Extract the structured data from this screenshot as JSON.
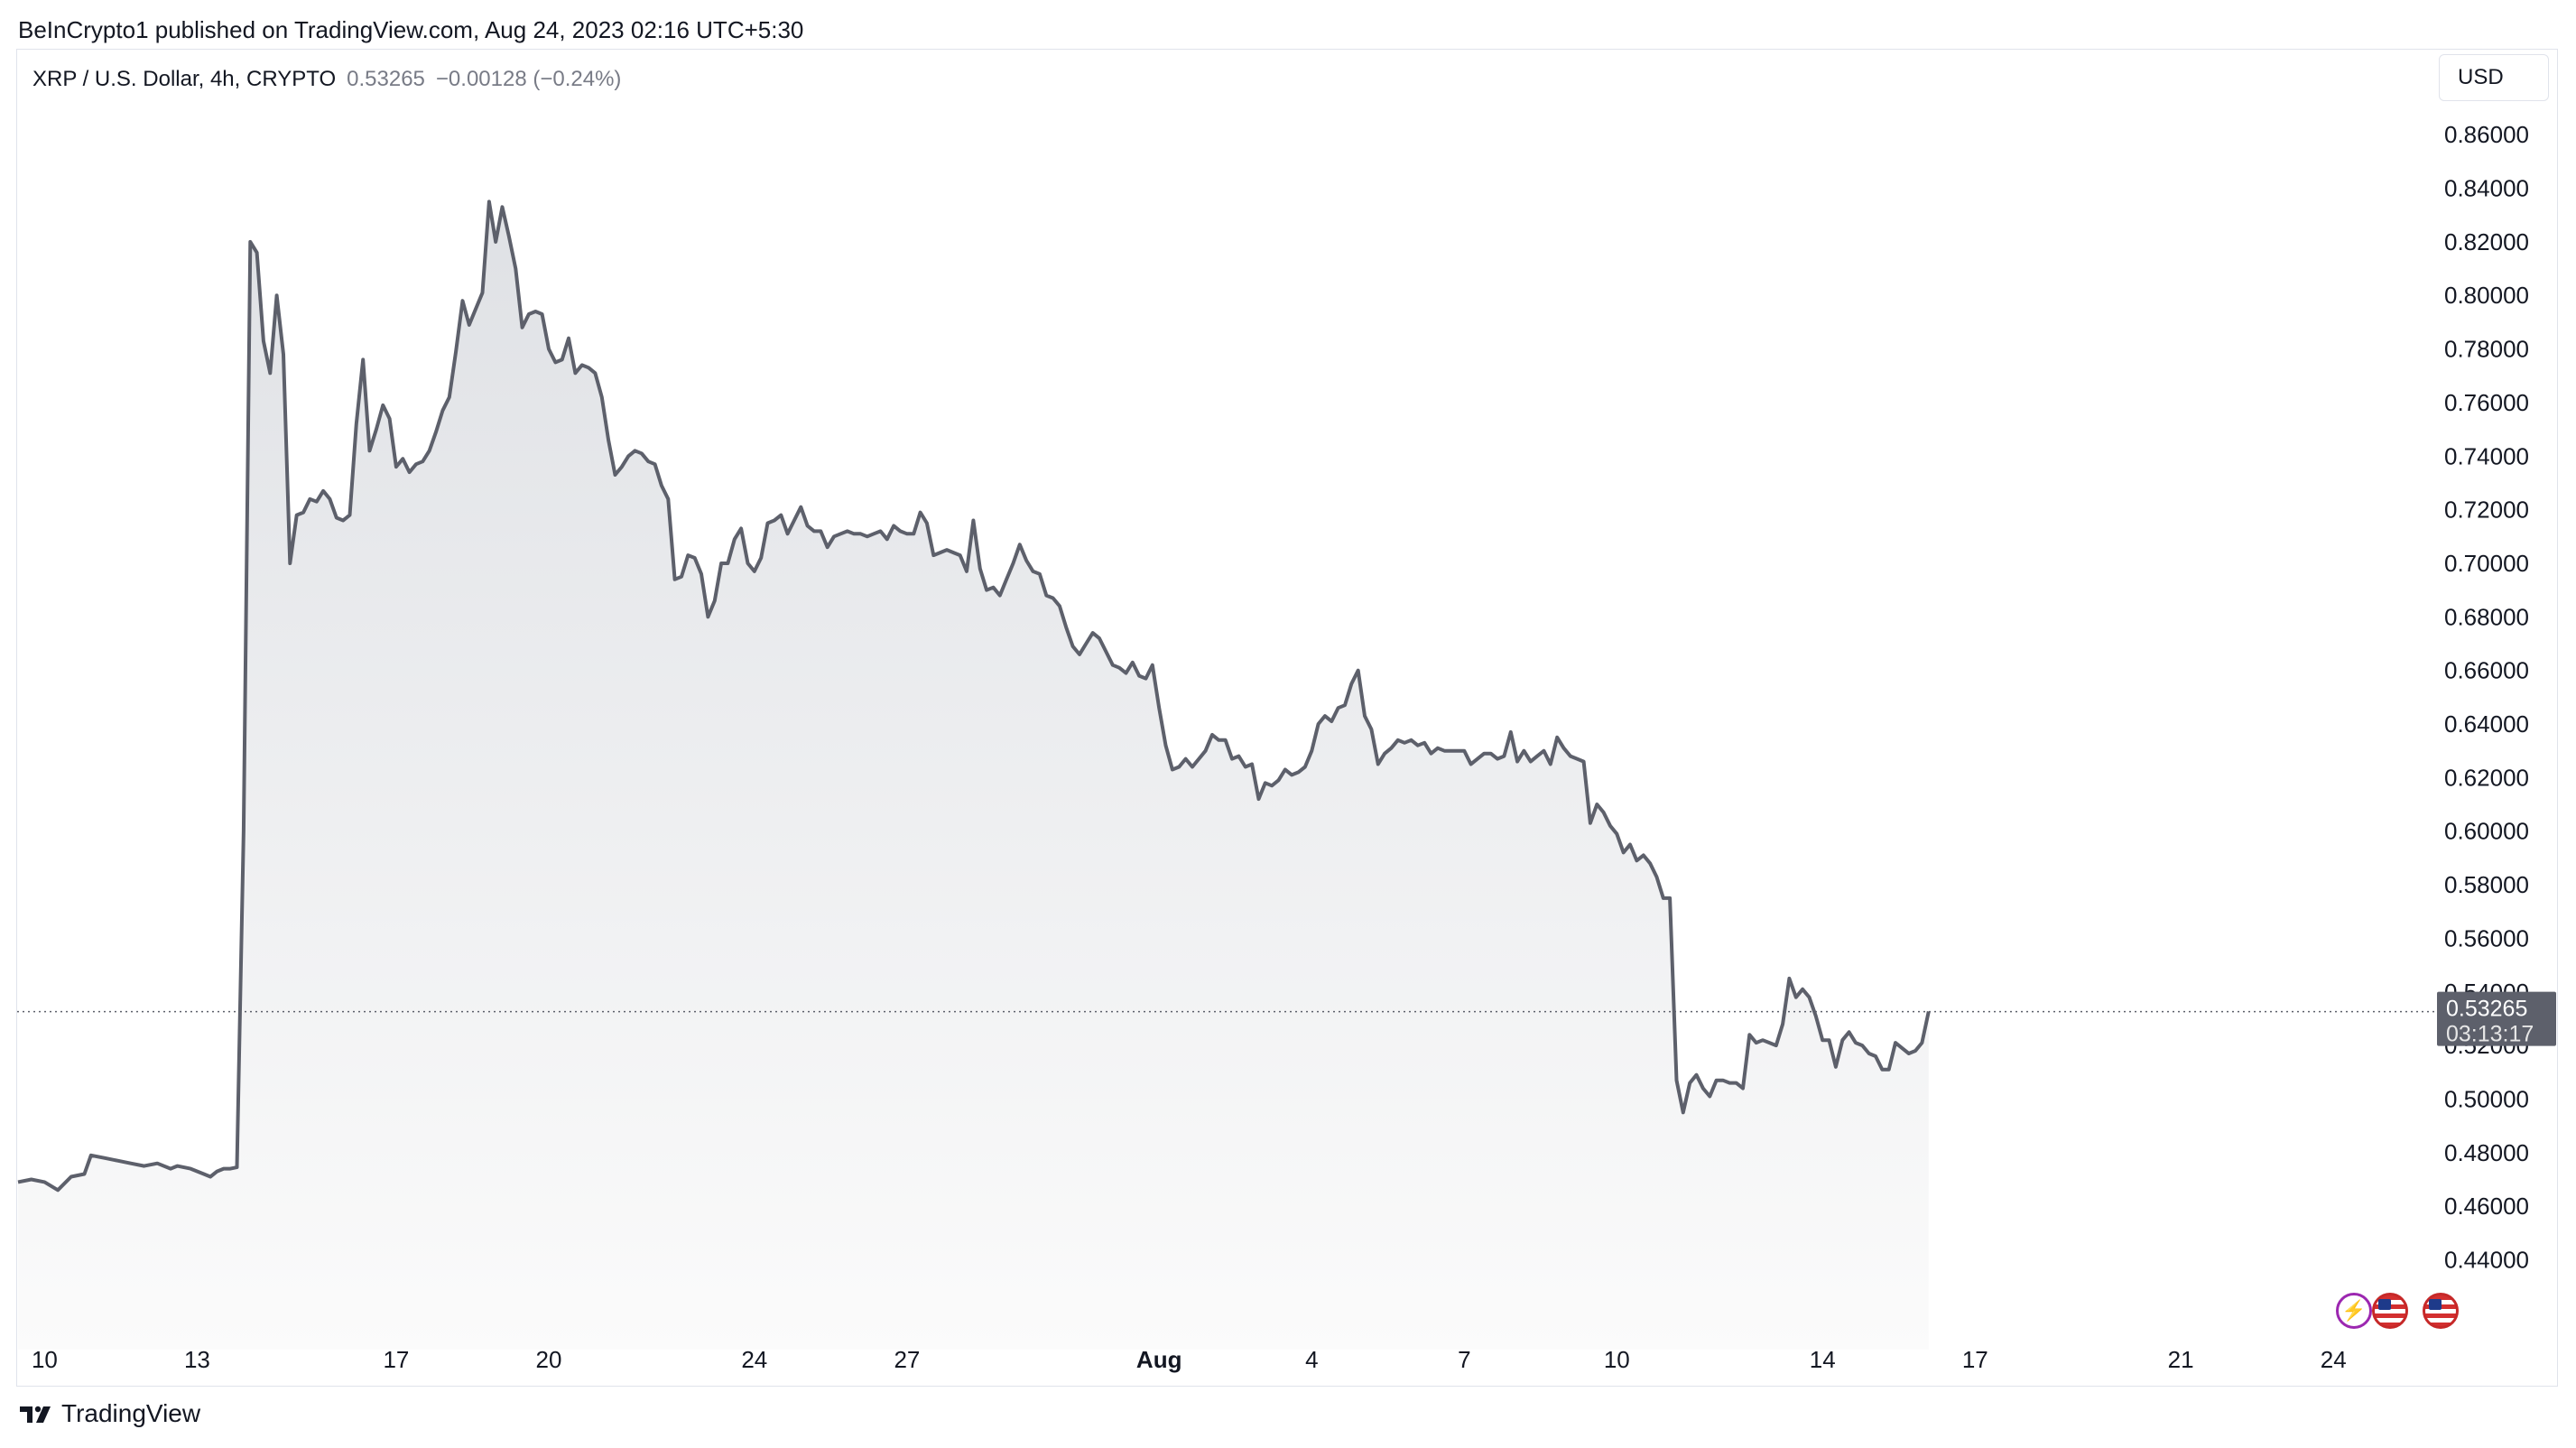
{
  "header": {
    "publish_text": "BeInCrypto1 published on TradingView.com, Aug 24, 2023 02:16 UTC+5:30"
  },
  "legend": {
    "symbol": "XRP / U.S. Dollar, 4h, CRYPTO",
    "last": "0.53265",
    "change": "−0.00128 (−0.24%)"
  },
  "currency_button": "USD",
  "price_label": {
    "price": "0.53265",
    "countdown": "03:13:17"
  },
  "badges": {
    "events_icon": "lightning-icon",
    "flag_icon": "us-flag-icon"
  },
  "footer": {
    "brand": "TradingView"
  },
  "colors": {
    "line": "#5d606b",
    "fill_top": "#dfe1e5",
    "fill_bottom": "#fbfbfb",
    "axis_text": "#131722",
    "price_label_bg": "#5d606b",
    "grid_border": "#e0e3eb"
  },
  "chart_data": {
    "type": "area",
    "title": "XRP / U.S. Dollar, 4h, CRYPTO",
    "xlabel": "",
    "ylabel": "",
    "legend": "none",
    "grid": false,
    "ylim": [
      0.425,
      0.885
    ],
    "xlim": [
      0,
      346
    ],
    "y_ticks": [
      "0.86000",
      "0.84000",
      "0.82000",
      "0.80000",
      "0.78000",
      "0.76000",
      "0.74000",
      "0.72000",
      "0.70000",
      "0.68000",
      "0.66000",
      "0.64000",
      "0.62000",
      "0.60000",
      "0.58000",
      "0.56000",
      "0.54000",
      "0.52000",
      "0.50000",
      "0.48000",
      "0.46000",
      "0.44000"
    ],
    "y_tick_values": [
      0.86,
      0.84,
      0.82,
      0.8,
      0.78,
      0.76,
      0.74,
      0.72,
      0.7,
      0.68,
      0.66,
      0.64,
      0.62,
      0.6,
      0.58,
      0.56,
      0.54,
      0.52,
      0.5,
      0.48,
      0.46,
      0.44
    ],
    "x_ticks": [
      {
        "label": "10",
        "x": 4
      },
      {
        "label": "13",
        "x": 27
      },
      {
        "label": "17",
        "x": 57
      },
      {
        "label": "20",
        "x": 80
      },
      {
        "label": "24",
        "x": 111
      },
      {
        "label": "27",
        "x": 134
      },
      {
        "label": "Aug",
        "x": 172,
        "bold": true
      },
      {
        "label": "4",
        "x": 195
      },
      {
        "label": "7",
        "x": 218
      },
      {
        "label": "10",
        "x": 241
      },
      {
        "label": "14",
        "x": 272
      },
      {
        "label": "17",
        "x": 295
      },
      {
        "label": "21",
        "x": 326
      },
      {
        "label": "24",
        "x": 349
      }
    ],
    "last_price": 0.53265,
    "series": [
      {
        "points": [
          [
            0,
            0.469
          ],
          [
            2,
            0.47
          ],
          [
            4,
            0.469
          ],
          [
            6,
            0.466
          ],
          [
            8,
            0.471
          ],
          [
            10,
            0.472
          ],
          [
            11,
            0.479
          ],
          [
            13,
            0.478
          ],
          [
            15,
            0.477
          ],
          [
            17,
            0.476
          ],
          [
            19,
            0.475
          ],
          [
            21,
            0.476
          ],
          [
            23,
            0.474
          ],
          [
            24,
            0.475
          ],
          [
            26,
            0.474
          ],
          [
            28,
            0.472
          ],
          [
            29,
            0.471
          ],
          [
            30,
            0.473
          ],
          [
            31,
            0.474
          ],
          [
            32,
            0.474
          ],
          [
            33,
            0.4745
          ],
          [
            34,
            0.6
          ],
          [
            35,
            0.82
          ],
          [
            36,
            0.816
          ],
          [
            37,
            0.783
          ],
          [
            38,
            0.771
          ],
          [
            39,
            0.8
          ],
          [
            40,
            0.778
          ],
          [
            41,
            0.7
          ],
          [
            42,
            0.718
          ],
          [
            43,
            0.719
          ],
          [
            44,
            0.724
          ],
          [
            45,
            0.723
          ],
          [
            46,
            0.727
          ],
          [
            47,
            0.724
          ],
          [
            48,
            0.717
          ],
          [
            49,
            0.716
          ],
          [
            50,
            0.718
          ],
          [
            51,
            0.752
          ],
          [
            52,
            0.776
          ],
          [
            53,
            0.742
          ],
          [
            54,
            0.75
          ],
          [
            55,
            0.759
          ],
          [
            56,
            0.754
          ],
          [
            57,
            0.736
          ],
          [
            58,
            0.739
          ],
          [
            59,
            0.734
          ],
          [
            60,
            0.737
          ],
          [
            61,
            0.738
          ],
          [
            62,
            0.742
          ],
          [
            63,
            0.749
          ],
          [
            64,
            0.757
          ],
          [
            65,
            0.762
          ],
          [
            66,
            0.779
          ],
          [
            67,
            0.798
          ],
          [
            68,
            0.789
          ],
          [
            69,
            0.795
          ],
          [
            70,
            0.801
          ],
          [
            71,
            0.835
          ],
          [
            72,
            0.82
          ],
          [
            73,
            0.833
          ],
          [
            74,
            0.822
          ],
          [
            75,
            0.81
          ],
          [
            76,
            0.788
          ],
          [
            77,
            0.793
          ],
          [
            78,
            0.794
          ],
          [
            79,
            0.793
          ],
          [
            80,
            0.78
          ],
          [
            81,
            0.775
          ],
          [
            82,
            0.776
          ],
          [
            83,
            0.784
          ],
          [
            84,
            0.771
          ],
          [
            85,
            0.774
          ],
          [
            86,
            0.773
          ],
          [
            87,
            0.771
          ],
          [
            88,
            0.762
          ],
          [
            89,
            0.746
          ],
          [
            90,
            0.733
          ],
          [
            91,
            0.736
          ],
          [
            92,
            0.74
          ],
          [
            93,
            0.742
          ],
          [
            94,
            0.741
          ],
          [
            95,
            0.738
          ],
          [
            96,
            0.737
          ],
          [
            97,
            0.729
          ],
          [
            98,
            0.724
          ],
          [
            99,
            0.694
          ],
          [
            100,
            0.695
          ],
          [
            101,
            0.703
          ],
          [
            102,
            0.702
          ],
          [
            103,
            0.696
          ],
          [
            104,
            0.68
          ],
          [
            105,
            0.686
          ],
          [
            106,
            0.7
          ],
          [
            107,
            0.7
          ],
          [
            108,
            0.709
          ],
          [
            109,
            0.713
          ],
          [
            110,
            0.7
          ],
          [
            111,
            0.697
          ],
          [
            112,
            0.702
          ],
          [
            113,
            0.715
          ],
          [
            114,
            0.716
          ],
          [
            115,
            0.718
          ],
          [
            116,
            0.711
          ],
          [
            117,
            0.716
          ],
          [
            118,
            0.721
          ],
          [
            119,
            0.714
          ],
          [
            120,
            0.712
          ],
          [
            121,
            0.712
          ],
          [
            122,
            0.706
          ],
          [
            123,
            0.71
          ],
          [
            124,
            0.711
          ],
          [
            125,
            0.712
          ],
          [
            126,
            0.711
          ],
          [
            127,
            0.711
          ],
          [
            128,
            0.71
          ],
          [
            129,
            0.711
          ],
          [
            130,
            0.712
          ],
          [
            131,
            0.709
          ],
          [
            132,
            0.714
          ],
          [
            133,
            0.712
          ],
          [
            134,
            0.711
          ],
          [
            135,
            0.711
          ],
          [
            136,
            0.719
          ],
          [
            137,
            0.715
          ],
          [
            138,
            0.703
          ],
          [
            139,
            0.704
          ],
          [
            140,
            0.705
          ],
          [
            141,
            0.704
          ],
          [
            142,
            0.703
          ],
          [
            143,
            0.697
          ],
          [
            144,
            0.716
          ],
          [
            145,
            0.698
          ],
          [
            146,
            0.69
          ],
          [
            147,
            0.691
          ],
          [
            148,
            0.688
          ],
          [
            149,
            0.694
          ],
          [
            150,
            0.7
          ],
          [
            151,
            0.707
          ],
          [
            152,
            0.701
          ],
          [
            153,
            0.697
          ],
          [
            154,
            0.696
          ],
          [
            155,
            0.688
          ],
          [
            156,
            0.687
          ],
          [
            157,
            0.684
          ],
          [
            158,
            0.676
          ],
          [
            159,
            0.669
          ],
          [
            160,
            0.666
          ],
          [
            161,
            0.67
          ],
          [
            162,
            0.674
          ],
          [
            163,
            0.672
          ],
          [
            164,
            0.667
          ],
          [
            165,
            0.662
          ],
          [
            166,
            0.661
          ],
          [
            167,
            0.659
          ],
          [
            168,
            0.663
          ],
          [
            169,
            0.658
          ],
          [
            170,
            0.657
          ],
          [
            171,
            0.662
          ],
          [
            172,
            0.646
          ],
          [
            173,
            0.632
          ],
          [
            174,
            0.623
          ],
          [
            175,
            0.624
          ],
          [
            176,
            0.627
          ],
          [
            177,
            0.624
          ],
          [
            178,
            0.627
          ],
          [
            179,
            0.63
          ],
          [
            180,
            0.636
          ],
          [
            181,
            0.634
          ],
          [
            182,
            0.634
          ],
          [
            183,
            0.627
          ],
          [
            184,
            0.628
          ],
          [
            185,
            0.624
          ],
          [
            186,
            0.625
          ],
          [
            187,
            0.612
          ],
          [
            188,
            0.618
          ],
          [
            189,
            0.617
          ],
          [
            190,
            0.619
          ],
          [
            191,
            0.623
          ],
          [
            192,
            0.621
          ],
          [
            193,
            0.622
          ],
          [
            194,
            0.624
          ],
          [
            195,
            0.63
          ],
          [
            196,
            0.64
          ],
          [
            197,
            0.643
          ],
          [
            198,
            0.641
          ],
          [
            199,
            0.646
          ],
          [
            200,
            0.647
          ],
          [
            201,
            0.655
          ],
          [
            202,
            0.66
          ],
          [
            203,
            0.643
          ],
          [
            204,
            0.638
          ],
          [
            205,
            0.625
          ],
          [
            206,
            0.629
          ],
          [
            207,
            0.631
          ],
          [
            208,
            0.634
          ],
          [
            209,
            0.633
          ],
          [
            210,
            0.634
          ],
          [
            211,
            0.632
          ],
          [
            212,
            0.633
          ],
          [
            213,
            0.629
          ],
          [
            214,
            0.631
          ],
          [
            215,
            0.63
          ],
          [
            216,
            0.63
          ],
          [
            217,
            0.63
          ],
          [
            218,
            0.63
          ],
          [
            219,
            0.625
          ],
          [
            220,
            0.627
          ],
          [
            221,
            0.629
          ],
          [
            222,
            0.629
          ],
          [
            223,
            0.627
          ],
          [
            224,
            0.628
          ],
          [
            225,
            0.637
          ],
          [
            226,
            0.626
          ],
          [
            227,
            0.63
          ],
          [
            228,
            0.626
          ],
          [
            229,
            0.628
          ],
          [
            230,
            0.63
          ],
          [
            231,
            0.625
          ],
          [
            232,
            0.635
          ],
          [
            233,
            0.631
          ],
          [
            234,
            0.628
          ],
          [
            235,
            0.627
          ],
          [
            236,
            0.626
          ],
          [
            237,
            0.603
          ],
          [
            238,
            0.61
          ],
          [
            239,
            0.607
          ],
          [
            240,
            0.602
          ],
          [
            241,
            0.599
          ],
          [
            242,
            0.592
          ],
          [
            243,
            0.595
          ],
          [
            244,
            0.589
          ],
          [
            245,
            0.591
          ],
          [
            246,
            0.588
          ],
          [
            247,
            0.583
          ],
          [
            248,
            0.575
          ],
          [
            249,
            0.575
          ],
          [
            250,
            0.507
          ],
          [
            251,
            0.495
          ],
          [
            252,
            0.506
          ],
          [
            253,
            0.509
          ],
          [
            254,
            0.504
          ],
          [
            255,
            0.501
          ],
          [
            256,
            0.507
          ],
          [
            257,
            0.507
          ],
          [
            258,
            0.506
          ],
          [
            259,
            0.506
          ],
          [
            260,
            0.504
          ],
          [
            261,
            0.524
          ],
          [
            262,
            0.521
          ],
          [
            263,
            0.522
          ],
          [
            264,
            0.521
          ],
          [
            265,
            0.52
          ],
          [
            266,
            0.528
          ],
          [
            267,
            0.545
          ],
          [
            268,
            0.538
          ],
          [
            269,
            0.541
          ],
          [
            270,
            0.538
          ],
          [
            271,
            0.531
          ],
          [
            272,
            0.522
          ],
          [
            273,
            0.522
          ],
          [
            274,
            0.512
          ],
          [
            275,
            0.522
          ],
          [
            276,
            0.525
          ],
          [
            277,
            0.521
          ],
          [
            278,
            0.52
          ],
          [
            279,
            0.517
          ],
          [
            280,
            0.516
          ],
          [
            281,
            0.511
          ],
          [
            282,
            0.511
          ],
          [
            283,
            0.521
          ],
          [
            284,
            0.519
          ],
          [
            285,
            0.517
          ],
          [
            286,
            0.518
          ],
          [
            287,
            0.521
          ],
          [
            288,
            0.5327
          ]
        ]
      }
    ]
  }
}
